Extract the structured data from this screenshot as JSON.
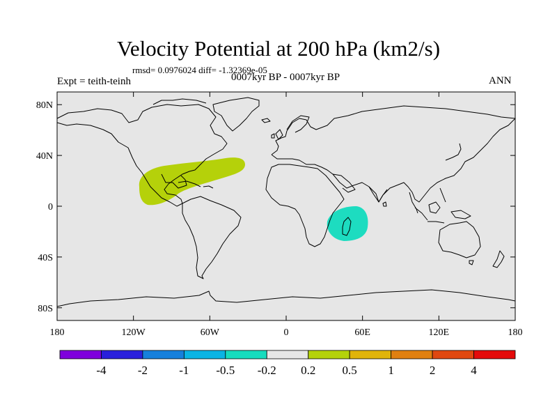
{
  "title": "Velocity Potential at 200 hPa (km2/s)",
  "stats": "rmsd= 0.0976024 diff= -1.32369e-05",
  "experiment": "Expt = teith-teinh",
  "period": "0007kyr BP - 0007kyr BP",
  "season": "ANN",
  "map": {
    "projection": "cylindrical equidistant",
    "lon_range": [
      -180,
      180
    ],
    "lat_range": [
      -90,
      90
    ],
    "background_color": "#e6e6e6",
    "lat_ticks": [
      {
        "value": 80,
        "label": "80N"
      },
      {
        "value": 40,
        "label": "40N"
      },
      {
        "value": 0,
        "label": "0"
      },
      {
        "value": -40,
        "label": "40S"
      },
      {
        "value": -80,
        "label": "80S"
      }
    ],
    "lon_ticks": [
      {
        "value": -180,
        "label": "180"
      },
      {
        "value": -120,
        "label": "120W"
      },
      {
        "value": -60,
        "label": "60W"
      },
      {
        "value": 0,
        "label": "0"
      },
      {
        "value": 60,
        "label": "60E"
      },
      {
        "value": 120,
        "label": "120E"
      },
      {
        "value": 180,
        "label": "180"
      }
    ],
    "anomalies": [
      {
        "name": "positive anomaly over Gulf of Mexico / Central America / western Atlantic",
        "range": "0.2 to 0.5",
        "color": "#b5d10a"
      },
      {
        "name": "negative anomaly over Mozambique Channel / Madagascar",
        "range": "-0.5 to -0.2",
        "color": "#1ddcc0"
      }
    ]
  },
  "colorbar": {
    "colors": [
      "#7f00dc",
      "#2a20dc",
      "#1680dc",
      "#0ab4e4",
      "#16dcbe",
      "#e6e6e6",
      "#b4d20a",
      "#e0b40a",
      "#e08010",
      "#e04810",
      "#e40a0a"
    ],
    "labels": [
      "-4",
      "-2",
      "-1",
      "-0.5",
      "-0.2",
      "0.2",
      "0.5",
      "1",
      "2",
      "4"
    ]
  }
}
